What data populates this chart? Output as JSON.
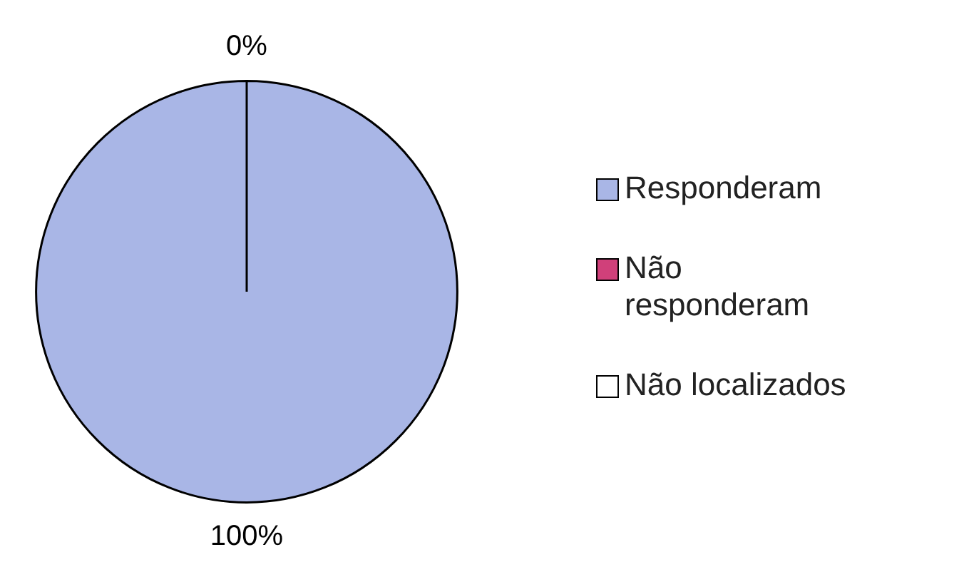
{
  "chart_data": {
    "type": "pie",
    "categories": [
      "Responderam",
      "Não responderam",
      "Não localizados"
    ],
    "values": [
      100,
      0,
      0
    ],
    "colors": [
      "#a9b6e6",
      "#d0407a",
      "#ffffff"
    ],
    "value_labels": [
      "100%",
      "0%",
      null
    ],
    "legend": "right"
  }
}
